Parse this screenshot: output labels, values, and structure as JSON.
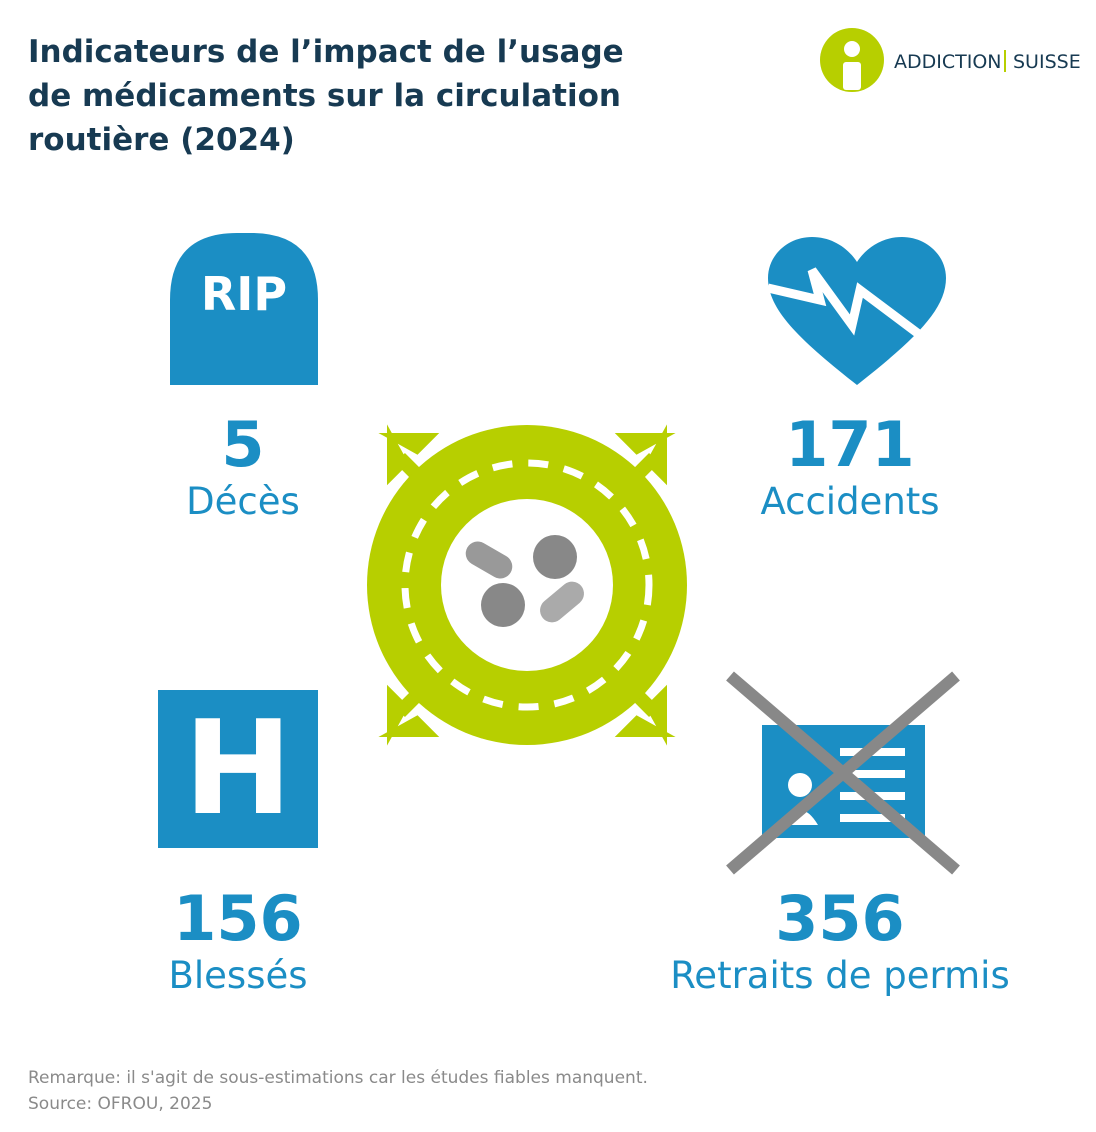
{
  "header": {
    "title_lines": [
      "Indicateurs de l’impact de l’usage",
      "de médicaments sur la circulation",
      "routière (2024)"
    ],
    "logo": {
      "left": "ADDICTION",
      "right": "SUISSE"
    }
  },
  "indicators": [
    {
      "icon_text": "RIP",
      "value": 5,
      "label": "Décès"
    },
    {
      "value": 171,
      "label": "Accidents"
    },
    {
      "icon_text": "H",
      "value": 156,
      "label": "Blessés"
    },
    {
      "value": 356,
      "label": "Retraits de permis"
    }
  ],
  "footer": {
    "note": "Remarque: il s'agit de sous-estimations car les études fiables manquent.",
    "source": "Source: OFROU, 2025"
  }
}
